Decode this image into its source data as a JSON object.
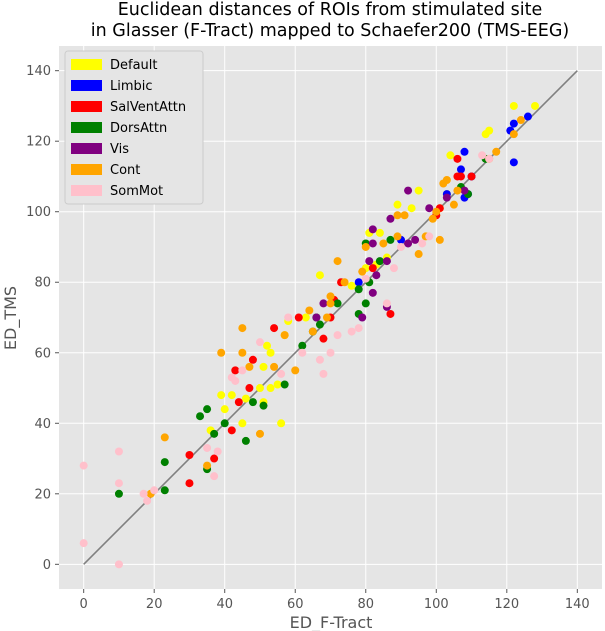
{
  "chart_data": {
    "type": "scatter",
    "title_line1": "Euclidean distances of ROIs from stimulated site",
    "title_line2": "in Glasser (F-Tract) mapped to Schaefer200 (TMS-EEG)",
    "xlabel": "ED_F-Tract",
    "ylabel": "ED_TMS",
    "xlim": [
      -7,
      147
    ],
    "ylim": [
      -7,
      147
    ],
    "xticks": [
      0,
      20,
      40,
      60,
      80,
      100,
      120,
      140
    ],
    "yticks": [
      0,
      20,
      40,
      60,
      80,
      100,
      120,
      140
    ],
    "grid": true,
    "legend_position": "upper-left",
    "identity_line": {
      "from": [
        0,
        0
      ],
      "to": [
        140,
        140
      ],
      "color": "#808080"
    },
    "series": [
      {
        "name": "Default",
        "color": "#ffff00",
        "points": [
          [
            122,
            130
          ],
          [
            128,
            130
          ],
          [
            115,
            123
          ],
          [
            114,
            122
          ],
          [
            104,
            116
          ],
          [
            103,
            105
          ],
          [
            101,
            101
          ],
          [
            100,
            99
          ],
          [
            95,
            106
          ],
          [
            93,
            101
          ],
          [
            89,
            102
          ],
          [
            84,
            94
          ],
          [
            81,
            94
          ],
          [
            83,
            85
          ],
          [
            86,
            87
          ],
          [
            80,
            84
          ],
          [
            76,
            79
          ],
          [
            67,
            82
          ],
          [
            63,
            70
          ],
          [
            58,
            69
          ],
          [
            57,
            65
          ],
          [
            53,
            60
          ],
          [
            52,
            62
          ],
          [
            51,
            56
          ],
          [
            50,
            50
          ],
          [
            53,
            50
          ],
          [
            55,
            51
          ],
          [
            56,
            40
          ],
          [
            51,
            46
          ],
          [
            46,
            47
          ],
          [
            42,
            48
          ],
          [
            40,
            44
          ],
          [
            39,
            48
          ],
          [
            36,
            38
          ],
          [
            45,
            40
          ]
        ]
      },
      {
        "name": "Limbic",
        "color": "#0000ff",
        "points": [
          [
            126,
            127
          ],
          [
            122,
            125
          ],
          [
            121,
            123
          ],
          [
            122,
            114
          ],
          [
            108,
            117
          ],
          [
            107,
            112
          ],
          [
            110,
            110
          ],
          [
            109,
            105
          ],
          [
            103,
            105
          ],
          [
            108,
            104
          ],
          [
            90,
            92
          ],
          [
            78,
            80
          ]
        ]
      },
      {
        "name": "SalVentAttn",
        "color": "#ff0000",
        "points": [
          [
            106,
            115
          ],
          [
            107,
            110
          ],
          [
            106,
            110
          ],
          [
            110,
            110
          ],
          [
            101,
            101
          ],
          [
            100,
            99
          ],
          [
            82,
            84
          ],
          [
            73,
            80
          ],
          [
            70,
            70
          ],
          [
            71,
            75
          ],
          [
            68,
            64
          ],
          [
            87,
            71
          ],
          [
            61,
            70
          ],
          [
            54,
            67
          ],
          [
            48,
            58
          ],
          [
            43,
            55
          ],
          [
            47,
            50
          ],
          [
            44,
            46
          ],
          [
            42,
            38
          ],
          [
            37,
            30
          ],
          [
            30,
            31
          ],
          [
            30,
            23
          ]
        ]
      },
      {
        "name": "DorsAttn",
        "color": "#008000",
        "points": [
          [
            114,
            115
          ],
          [
            107,
            107
          ],
          [
            109,
            105
          ],
          [
            87,
            92
          ],
          [
            80,
            91
          ],
          [
            84,
            86
          ],
          [
            81,
            80
          ],
          [
            78,
            78
          ],
          [
            78,
            71
          ],
          [
            80,
            74
          ],
          [
            72,
            74
          ],
          [
            66,
            70
          ],
          [
            67,
            68
          ],
          [
            65,
            66
          ],
          [
            62,
            62
          ],
          [
            57,
            51
          ],
          [
            51,
            45
          ],
          [
            48,
            46
          ],
          [
            46,
            35
          ],
          [
            40,
            40
          ],
          [
            35,
            44
          ],
          [
            37,
            37
          ],
          [
            35,
            27
          ],
          [
            33,
            42
          ],
          [
            23,
            29
          ],
          [
            23,
            21
          ],
          [
            10,
            20
          ]
        ]
      },
      {
        "name": "Vis",
        "color": "#800080",
        "points": [
          [
            108,
            106
          ],
          [
            103,
            104
          ],
          [
            98,
            101
          ],
          [
            92,
            106
          ],
          [
            94,
            92
          ],
          [
            92,
            91
          ],
          [
            87,
            98
          ],
          [
            82,
            95
          ],
          [
            82,
            91
          ],
          [
            86,
            86
          ],
          [
            81,
            86
          ],
          [
            83,
            82
          ],
          [
            82,
            77
          ],
          [
            86,
            73
          ],
          [
            79,
            70
          ],
          [
            68,
            74
          ],
          [
            66,
            70
          ]
        ]
      },
      {
        "name": "Cont",
        "color": "#ffa500",
        "points": [
          [
            124,
            126
          ],
          [
            122,
            122
          ],
          [
            117,
            117
          ],
          [
            115,
            115
          ],
          [
            106,
            106
          ],
          [
            105,
            102
          ],
          [
            103,
            109
          ],
          [
            102,
            108
          ],
          [
            100,
            100
          ],
          [
            99,
            98
          ],
          [
            97,
            93
          ],
          [
            95,
            88
          ],
          [
            101,
            92
          ],
          [
            91,
            99
          ],
          [
            89,
            99
          ],
          [
            89,
            93
          ],
          [
            85,
            91
          ],
          [
            80,
            90
          ],
          [
            79,
            83
          ],
          [
            74,
            80
          ],
          [
            72,
            86
          ],
          [
            70,
            76
          ],
          [
            70,
            74
          ],
          [
            69,
            70
          ],
          [
            65,
            66
          ],
          [
            64,
            72
          ],
          [
            60,
            55
          ],
          [
            57,
            65
          ],
          [
            54,
            56
          ],
          [
            50,
            37
          ],
          [
            47,
            56
          ],
          [
            45,
            60
          ],
          [
            45,
            67
          ],
          [
            39,
            60
          ],
          [
            23,
            36
          ],
          [
            19,
            20
          ],
          [
            35,
            28
          ]
        ]
      },
      {
        "name": "SomMot",
        "color": "#ffc0cb",
        "points": [
          [
            115,
            115
          ],
          [
            113,
            116
          ],
          [
            98,
            93
          ],
          [
            96,
            91
          ],
          [
            90,
            90
          ],
          [
            88,
            84
          ],
          [
            86,
            74
          ],
          [
            80,
            81
          ],
          [
            78,
            67
          ],
          [
            76,
            66
          ],
          [
            72,
            65
          ],
          [
            70,
            60
          ],
          [
            67,
            58
          ],
          [
            68,
            54
          ],
          [
            62,
            60
          ],
          [
            58,
            70
          ],
          [
            56,
            54
          ],
          [
            50,
            63
          ],
          [
            45,
            55
          ],
          [
            42,
            53
          ],
          [
            43,
            52
          ],
          [
            38,
            32
          ],
          [
            37,
            25
          ],
          [
            35,
            33
          ],
          [
            20,
            21
          ],
          [
            18,
            18
          ],
          [
            17,
            20
          ],
          [
            10,
            32
          ],
          [
            10,
            23
          ],
          [
            10,
            0
          ],
          [
            0,
            28
          ],
          [
            0,
            6
          ]
        ]
      }
    ]
  }
}
